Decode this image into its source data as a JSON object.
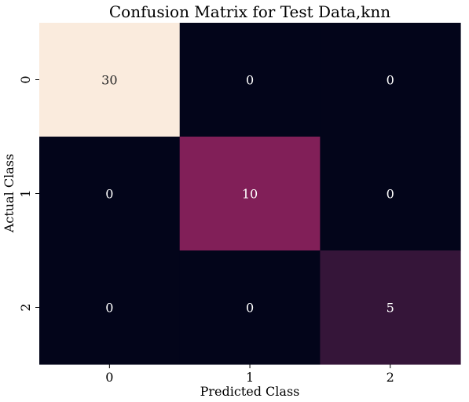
{
  "chart_data": {
    "type": "heatmap",
    "title": "Confusion Matrix for Test Data,knn",
    "xlabel": "Predicted Class",
    "ylabel": "Actual Class",
    "x_categories": [
      "0",
      "1",
      "2"
    ],
    "y_categories": [
      "0",
      "1",
      "2"
    ],
    "values": [
      [
        30,
        0,
        0
      ],
      [
        0,
        10,
        0
      ],
      [
        0,
        0,
        5
      ]
    ],
    "colorscale": "rocket",
    "value_range": [
      0,
      30
    ],
    "colorbar": false,
    "grid": false
  }
}
